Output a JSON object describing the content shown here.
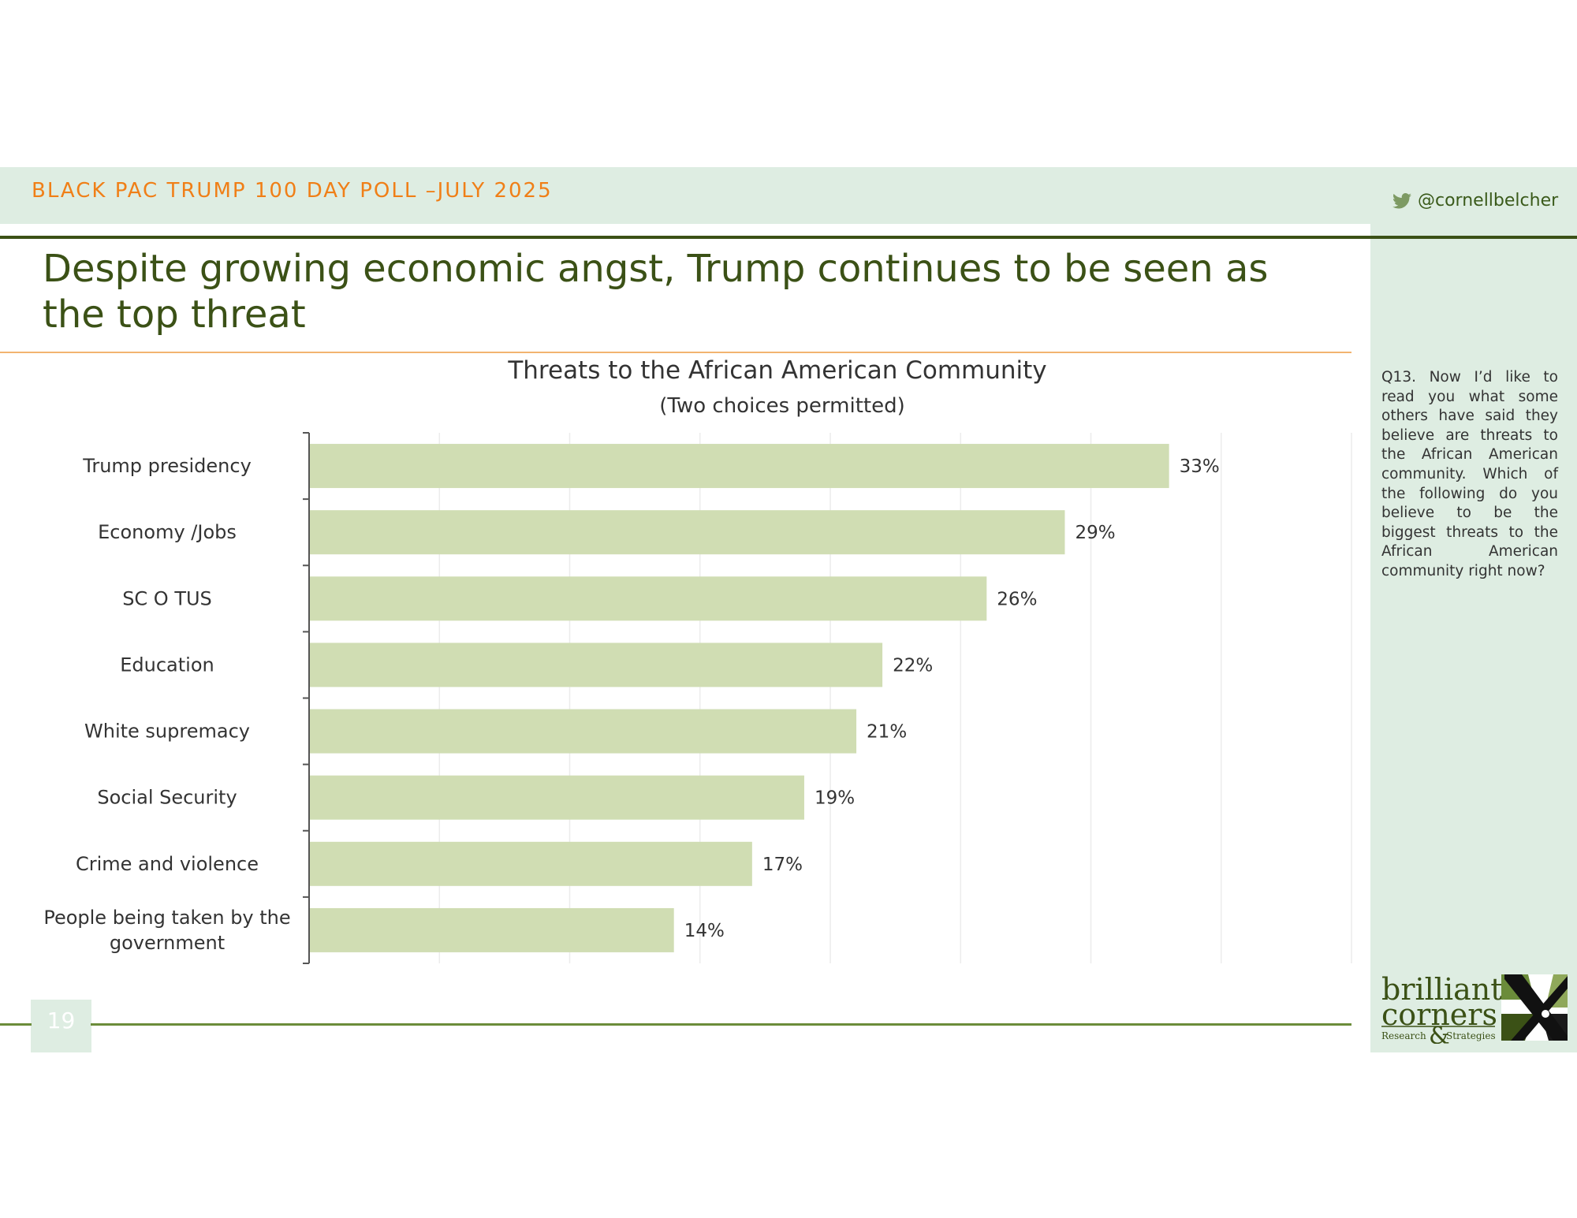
{
  "header": {
    "poll_label": "BLACK PAC TRUMP 100 DAY POLL –JULY 2025",
    "handle": "@cornellbelcher",
    "handle_icon": "twitter-bird-icon"
  },
  "slide": {
    "title": "Despite growing economic angst, Trump continues to be seen as the top threat",
    "page_number": "19"
  },
  "question": "Q13. Now I’d like to read you what some others have said they believe are threats to the African American community. Which of the following do you believe to be the biggest threats to the African American community right now?",
  "logo": {
    "line1": "brilliant",
    "line2": "corners",
    "line3a": "Research",
    "amp": "&",
    "line3b": "Strategies"
  },
  "colors": {
    "bar": "#d0ddb3",
    "accent_orange": "#f07f17",
    "dark_green": "#3b5116",
    "panel": "#deede2"
  },
  "chart_data": {
    "type": "bar",
    "orientation": "horizontal",
    "title": "Threats to the African American Community",
    "subtitle": "(Two choices permitted)",
    "categories": [
      [
        "Trump presidency"
      ],
      [
        "Economy /Jobs"
      ],
      [
        "SC O TUS"
      ],
      [
        "Education"
      ],
      [
        "White supremacy"
      ],
      [
        "Social Security"
      ],
      [
        "Crime and violence"
      ],
      [
        "People being taken by the",
        "government"
      ]
    ],
    "values": [
      33,
      29,
      26,
      22,
      21,
      19,
      17,
      14
    ],
    "data_labels": [
      "33%",
      "29%",
      "26%",
      "22%",
      "21%",
      "19%",
      "17%",
      "14%"
    ],
    "xlim": [
      0,
      40
    ],
    "grid": true,
    "legend": "none"
  }
}
